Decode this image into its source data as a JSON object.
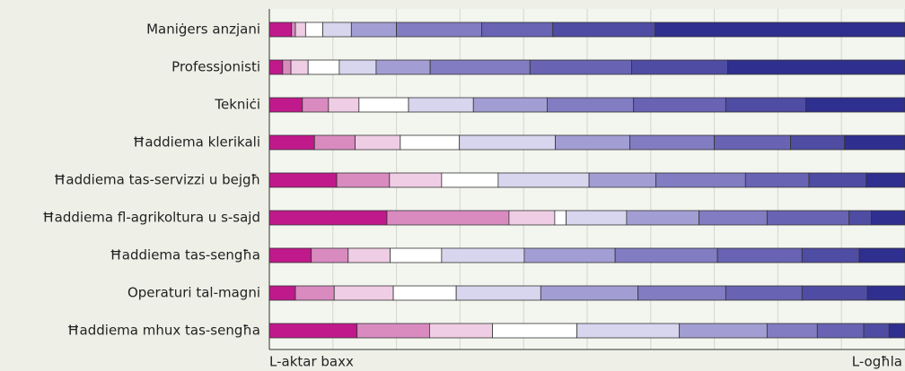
{
  "chart_data": {
    "type": "stacked-barh",
    "categories": [
      "Maniġers anzjani",
      "Professjonisti",
      "Tekniċi",
      "Ħaddiema klerikali",
      "Ħaddiema tas-servizzi u bejgħ",
      "Ħaddiema fl-agrikoltura u s-sajd",
      "Ħaddiema tas-sengħa",
      "Operaturi tal-magni",
      "Ħaddiema mhux tas-sengħa"
    ],
    "series": [
      {
        "color": "#c0198b",
        "values": [
          3.5,
          2.1,
          5.2,
          7.1,
          10.6,
          18.5,
          6.6,
          4.1,
          13.8
        ]
      },
      {
        "color": "#d98bc0",
        "values": [
          0.6,
          1.3,
          4.1,
          6.4,
          8.3,
          19.2,
          5.8,
          6.1,
          11.4
        ]
      },
      {
        "color": "#efcde4",
        "values": [
          1.6,
          2.7,
          4.8,
          7.1,
          8.2,
          7.2,
          6.6,
          9.3,
          9.9
        ]
      },
      {
        "color": "#ffffff",
        "values": [
          2.7,
          4.9,
          7.8,
          9.3,
          8.9,
          1.8,
          8.1,
          9.9,
          13.3
        ]
      },
      {
        "color": "#d8d5ee",
        "values": [
          4.5,
          5.8,
          10.2,
          15.1,
          14.3,
          9.5,
          13.0,
          13.3,
          16.1
        ]
      },
      {
        "color": "#a29ed3",
        "values": [
          7.1,
          8.5,
          11.6,
          11.7,
          10.5,
          11.4,
          14.3,
          15.3,
          13.8
        ]
      },
      {
        "color": "#827cc2",
        "values": [
          13.4,
          15.7,
          13.6,
          13.3,
          14.1,
          10.7,
          16.1,
          13.8,
          7.9
        ]
      },
      {
        "color": "#6863b3",
        "values": [
          11.2,
          16.0,
          14.5,
          12.0,
          10.0,
          12.9,
          13.3,
          12.0,
          7.3
        ]
      },
      {
        "color": "#4f4ca3",
        "values": [
          16.1,
          15.1,
          12.6,
          8.5,
          9.0,
          3.5,
          9.0,
          10.3,
          4.0
        ]
      },
      {
        "color": "#2e2f8f",
        "values": [
          39.3,
          27.9,
          15.6,
          9.5,
          6.1,
          5.3,
          7.2,
          5.9,
          2.5
        ]
      }
    ],
    "xlim": [
      0,
      100
    ],
    "xticks": [
      0,
      10,
      20,
      30,
      40,
      50,
      60,
      70,
      80,
      90,
      100
    ],
    "grid": true,
    "xlabel_low": "L-aktar baxx",
    "xlabel_high": "L-ogħla"
  }
}
